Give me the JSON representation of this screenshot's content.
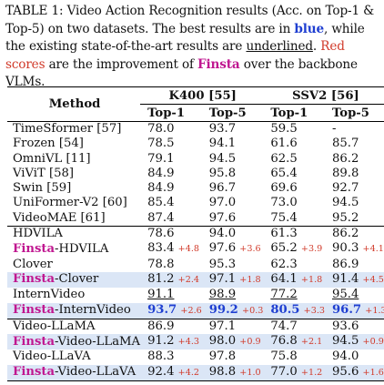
{
  "caption": {
    "p1": "TABLE 1: Video Action Recognition results (Acc. on Top-1 & Top-5) on two datasets. The best results are in ",
    "blue": "blue",
    "p2": ", while the existing state-of-the-art results are ",
    "underlined": "underlined",
    "p3": ". ",
    "red": "Red scores",
    "p4": " are the improvement of ",
    "finsta": "Finsta",
    "p5": " over the backbone VLMs."
  },
  "header": {
    "method": "Method",
    "k400": "K400 [55]",
    "ssv2": "SSV2 [56]",
    "top1": "Top-1",
    "top5": "Top-5"
  },
  "colors": {
    "best": "#1f3fd1",
    "gain": "#d13a2a",
    "finsta": "#c01790",
    "highlight": "#dbe6f6"
  },
  "baselines": [
    {
      "name": "TimeSformer [57]",
      "k1": "78.0",
      "k5": "93.7",
      "s1": "59.5",
      "s5": "-"
    },
    {
      "name": "Frozen [54]",
      "k1": "78.5",
      "k5": "94.1",
      "s1": "61.6",
      "s5": "85.7"
    },
    {
      "name": "OmniVL [11]",
      "k1": "79.1",
      "k5": "94.5",
      "s1": "62.5",
      "s5": "86.2"
    },
    {
      "name": "ViViT [58]",
      "k1": "84.9",
      "k5": "95.8",
      "s1": "65.4",
      "s5": "89.8"
    },
    {
      "name": "Swin [59]",
      "k1": "84.9",
      "k5": "96.7",
      "s1": "69.6",
      "s5": "92.7"
    },
    {
      "name": "UniFormer-V2 [60]",
      "k1": "85.4",
      "k5": "97.0",
      "s1": "73.0",
      "s5": "94.5"
    },
    {
      "name": "VideoMAE [61]",
      "k1": "87.4",
      "k5": "97.6",
      "s1": "75.4",
      "s5": "95.2"
    }
  ],
  "pairs": [
    {
      "base": {
        "name": "HDVILA",
        "k1": "78.6",
        "k5": "94.0",
        "s1": "61.3",
        "s5": "86.2"
      },
      "finsta": {
        "prefix": "Finsta",
        "suffix": "-HDVILA",
        "k1": "83.4",
        "k1g": "+4.8",
        "k5": "97.6",
        "k5g": "+3.6",
        "s1": "65.2",
        "s1g": "+3.9",
        "s5": "90.3",
        "s5g": "+4.1"
      }
    },
    {
      "base": {
        "name": "Clover",
        "k1": "78.8",
        "k5": "95.3",
        "s1": "62.3",
        "s5": "86.9"
      },
      "finsta": {
        "prefix": "Finsta",
        "suffix": "-Clover",
        "k1": "81.2",
        "k1g": "+2.4",
        "k5": "97.1",
        "k5g": "+1.8",
        "s1": "64.1",
        "s1g": "+1.8",
        "s5": "91.4",
        "s5g": "+4.5"
      }
    },
    {
      "base": {
        "name": "InternVideo",
        "k1": "91.1",
        "k5": "98.9",
        "s1": "77.2",
        "s5": "95.4"
      },
      "finsta": {
        "prefix": "Finsta",
        "suffix": "-InternVideo",
        "k1": "93.7",
        "k1g": "+2.6",
        "k5": "99.2",
        "k5g": "+0.3",
        "s1": "80.5",
        "s1g": "+3.3",
        "s5": "96.7",
        "s5g": "+1.3"
      }
    },
    {
      "base": {
        "name": "Video-LLaMA",
        "k1": "86.9",
        "k5": "97.1",
        "s1": "74.7",
        "s5": "93.6"
      },
      "finsta": {
        "prefix": "Finsta",
        "suffix": "-Video-LLaMA",
        "k1": "91.2",
        "k1g": "+4.3",
        "k5": "98.0",
        "k5g": "+0.9",
        "s1": "76.8",
        "s1g": "+2.1",
        "s5": "94.5",
        "s5g": "+0.9"
      }
    },
    {
      "base": {
        "name": "Video-LLaVA",
        "k1": "88.3",
        "k5": "97.8",
        "s1": "75.8",
        "s5": "94.0"
      },
      "finsta": {
        "prefix": "Finsta",
        "suffix": "-Video-LLaVA",
        "k1": "92.4",
        "k1g": "+4.2",
        "k5": "98.8",
        "k5g": "+1.0",
        "s1": "77.0",
        "s1g": "+1.2",
        "s5": "95.6",
        "s5g": "+1.6"
      }
    }
  ]
}
